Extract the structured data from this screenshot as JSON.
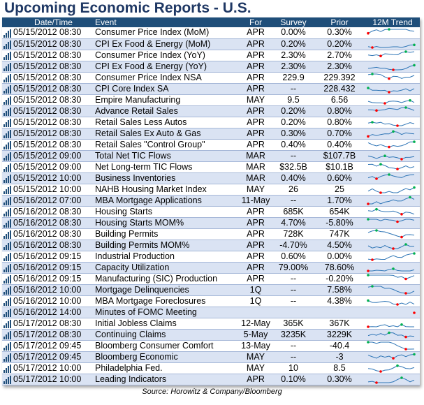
{
  "title": "Upcoming Economic Reports - U.S.",
  "headers": {
    "datetime": "Date/Time",
    "event": "Event",
    "for": "For",
    "survey": "Survey",
    "prior": "Prior",
    "trend": "12M Trend"
  },
  "source": "Source: Horowitz & Company/Bloomberg",
  "icon": "bar-chart-icon",
  "colors": {
    "header_bg": "#1f4e79",
    "title": "#1f3864",
    "row_alt": "#dae3f3",
    "spark_line": "#2e75b6",
    "spark_high": "#00b050",
    "spark_low": "#ff0000"
  },
  "rows": [
    {
      "date": "05/15/2012 08:30",
      "event": "Consumer Price Index (MoM)",
      "for": "APR",
      "survey": "0.00%",
      "prior": "0.30%"
    },
    {
      "date": "05/15/2012 08:30",
      "event": "CPI Ex Food & Energy (MoM)",
      "for": "APR",
      "survey": "0.20%",
      "prior": "0.20%"
    },
    {
      "date": "05/15/2012 08:30",
      "event": "Consumer Price Index (YoY)",
      "for": "APR",
      "survey": "2.30%",
      "prior": "2.70%"
    },
    {
      "date": "05/15/2012 08:30",
      "event": "CPI Ex Food & Energy (YoY)",
      "for": "APR",
      "survey": "2.30%",
      "prior": "2.30%"
    },
    {
      "date": "05/15/2012 08:30",
      "event": "Consumer Price Index NSA",
      "for": "APR",
      "survey": "229.9",
      "prior": "229.392"
    },
    {
      "date": "05/15/2012 08:30",
      "event": "CPI Core Index SA",
      "for": "APR",
      "survey": "--",
      "prior": "228.432"
    },
    {
      "date": "05/15/2012 08:30",
      "event": "Empire Manufacturing",
      "for": "MAY",
      "survey": "9.5",
      "prior": "6.56"
    },
    {
      "date": "05/15/2012 08:30",
      "event": "Advance Retail Sales",
      "for": "APR",
      "survey": "0.20%",
      "prior": "0.80%"
    },
    {
      "date": "05/15/2012 08:30",
      "event": "Retail Sales Less Autos",
      "for": "APR",
      "survey": "0.20%",
      "prior": "0.80%"
    },
    {
      "date": "05/15/2012 08:30",
      "event": "Retail Sales Ex Auto & Gas",
      "for": "APR",
      "survey": "0.30%",
      "prior": "0.70%"
    },
    {
      "date": "05/15/2012 08:30",
      "event": "Retail Sales \"Control Group\"",
      "for": "APR",
      "survey": "0.40%",
      "prior": "0.40%"
    },
    {
      "date": "05/15/2012 09:00",
      "event": "Total Net TIC Flows",
      "for": "MAR",
      "survey": "--",
      "prior": "$107.7B"
    },
    {
      "date": "05/15/2012 09:00",
      "event": "Net Long-term TIC Flows",
      "for": "MAR",
      "survey": "$32.5B",
      "prior": "$10.1B"
    },
    {
      "date": "05/15/2012 10:00",
      "event": "Business Inventories",
      "for": "MAR",
      "survey": "0.40%",
      "prior": "0.60%"
    },
    {
      "date": "05/15/2012 10:00",
      "event": "NAHB Housing Market Index",
      "for": "MAY",
      "survey": "26",
      "prior": "25"
    },
    {
      "date": "05/16/2012 07:00",
      "event": "MBA Mortgage Applications",
      "for": "11-May",
      "survey": "--",
      "prior": "1.70%"
    },
    {
      "date": "05/16/2012 08:30",
      "event": "Housing Starts",
      "for": "APR",
      "survey": "685K",
      "prior": "654K"
    },
    {
      "date": "05/16/2012 08:30",
      "event": "Housing Starts MOM%",
      "for": "APR",
      "survey": "4.70%",
      "prior": "-5.80%"
    },
    {
      "date": "05/16/2012 08:30",
      "event": "Building Permits",
      "for": "APR",
      "survey": "728K",
      "prior": "747K"
    },
    {
      "date": "05/16/2012 08:30",
      "event": "Building Permits MOM%",
      "for": "APR",
      "survey": "-4.70%",
      "prior": "4.50%"
    },
    {
      "date": "05/16/2012 09:15",
      "event": "Industrial Production",
      "for": "APR",
      "survey": "0.60%",
      "prior": "0.00%"
    },
    {
      "date": "05/16/2012 09:15",
      "event": "Capacity Utilization",
      "for": "APR",
      "survey": "79.00%",
      "prior": "78.60%"
    },
    {
      "date": "05/16/2012 09:15",
      "event": "Manufacturing (SIC) Production",
      "for": "APR",
      "survey": "--",
      "prior": "-0.20%"
    },
    {
      "date": "05/16/2012 10:00",
      "event": "Mortgage Delinquencies",
      "for": "1Q",
      "survey": "--",
      "prior": "7.58%"
    },
    {
      "date": "05/16/2012 10:00",
      "event": "MBA Mortgage Foreclosures",
      "for": "1Q",
      "survey": "--",
      "prior": "4.38%"
    },
    {
      "date": "05/16/2012 14:00",
      "event": "Minutes of FOMC Meeting",
      "for": "",
      "survey": "",
      "prior": ""
    },
    {
      "date": "05/17/2012 08:30",
      "event": "Initial Jobless Claims",
      "for": "12-May",
      "survey": "365K",
      "prior": "367K"
    },
    {
      "date": "05/17/2012 08:30",
      "event": "Continuing Claims",
      "for": "5-May",
      "survey": "3235K",
      "prior": "3229K"
    },
    {
      "date": "05/17/2012 09:45",
      "event": "Bloomberg Consumer Comfort",
      "for": "13-May",
      "survey": "--",
      "prior": "-40.4"
    },
    {
      "date": "05/17/2012 09:45",
      "event": "Bloomberg Economic",
      "for": "MAY",
      "survey": "--",
      "prior": "-3"
    },
    {
      "date": "05/17/2012 10:00",
      "event": "Philadelphia Fed.",
      "for": "MAY",
      "survey": "10",
      "prior": "8.5"
    },
    {
      "date": "05/17/2012 10:00",
      "event": "Leading Indicators",
      "for": "APR",
      "survey": "0.10%",
      "prior": "0.30%"
    }
  ]
}
